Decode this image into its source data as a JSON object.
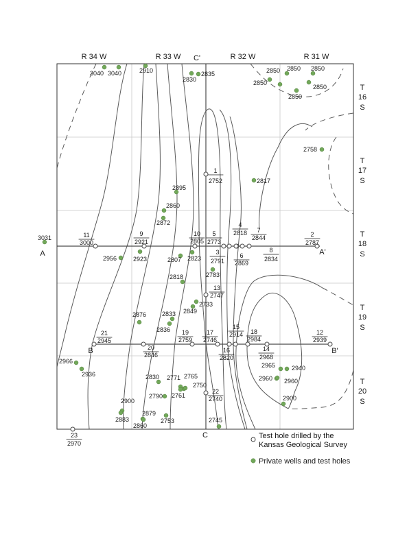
{
  "ranges": [
    "R 34 W",
    "R 33 W",
    "R 32 W",
    "R 31 W"
  ],
  "townships": [
    [
      "T",
      "16",
      "S"
    ],
    [
      "T",
      "17",
      "S"
    ],
    [
      "T",
      "18",
      "S"
    ],
    [
      "T",
      "19",
      "S"
    ],
    [
      "T",
      "20",
      "S"
    ]
  ],
  "section_labels": [
    "A",
    "A'",
    "B",
    "B'",
    "C",
    "C'"
  ],
  "kgs_holes": [
    {
      "id": "1",
      "elev": "2752"
    },
    {
      "id": "2",
      "elev": "2787"
    },
    {
      "id": "3",
      "elev": "2791"
    },
    {
      "id": "4",
      "elev": "2818"
    },
    {
      "id": "5",
      "elev": "2773"
    },
    {
      "id": "6",
      "elev": "2869"
    },
    {
      "id": "7",
      "elev": "2844"
    },
    {
      "id": "8",
      "elev": "2834"
    },
    {
      "id": "9",
      "elev": "2921"
    },
    {
      "id": "10",
      "elev": "2805"
    },
    {
      "id": "11",
      "elev": "3000"
    },
    {
      "id": "12",
      "elev": "2939"
    },
    {
      "id": "13",
      "elev": "2747"
    },
    {
      "id": "14",
      "elev": "2968"
    },
    {
      "id": "15",
      "elev": "2914"
    },
    {
      "id": "16",
      "elev": "2820"
    },
    {
      "id": "17",
      "elev": "2746"
    },
    {
      "id": "18",
      "elev": "2984"
    },
    {
      "id": "19",
      "elev": "2759"
    },
    {
      "id": "20",
      "elev": "2846"
    },
    {
      "id": "21",
      "elev": "2945"
    },
    {
      "id": "22",
      "elev": "2740"
    },
    {
      "id": "23",
      "elev": "2970"
    }
  ],
  "wells": [
    "3040",
    "3040",
    "2910",
    "2830",
    "2835",
    "2850",
    "2850",
    "2850",
    "2850",
    "2850",
    "2850",
    "2758",
    "2817",
    "2895",
    "2860",
    "2872",
    "3031",
    "2956",
    "2923",
    "2807",
    "2823",
    "2783",
    "2818",
    "2733",
    "2849",
    "2876",
    "2833",
    "2836",
    "2966",
    "2936",
    "2830",
    "2771",
    "2765",
    "2750",
    "2790",
    "2761",
    "2900",
    "2883",
    "2879",
    "2860",
    "2753",
    "2745",
    "2965",
    "2940",
    "2960",
    "2960",
    "2900"
  ],
  "legend": {
    "kgs_label_line1": "Test hole drilled by the",
    "kgs_label_line2": "Kansas Geological Survey",
    "wells_label": "Private wells and test holes"
  },
  "colors": {
    "well": "#72a85a",
    "contour": "#5a5a5a",
    "grid": "#c8c8c8"
  }
}
